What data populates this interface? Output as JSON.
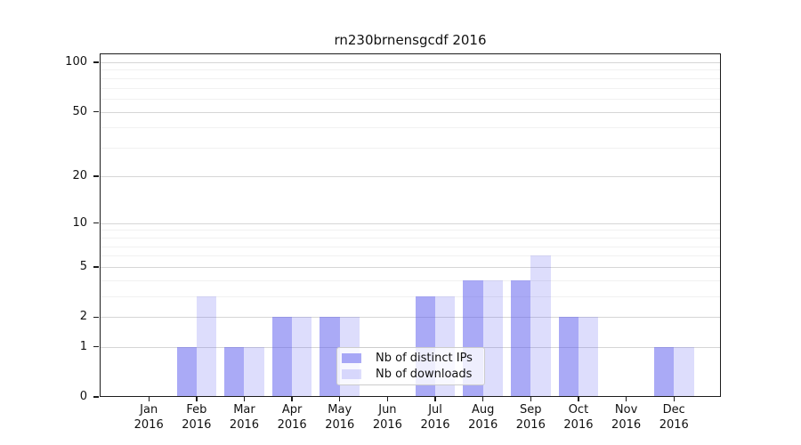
{
  "chart_data": {
    "type": "bar",
    "title": "rn230brnensgcdf 2016",
    "categories": [
      "Jan",
      "Feb",
      "Mar",
      "Apr",
      "May",
      "Jun",
      "Jul",
      "Aug",
      "Sep",
      "Oct",
      "Nov",
      "Dec"
    ],
    "category_year": "2016",
    "series": [
      {
        "name": "Nb of distinct IPs",
        "color": "rgba(85,85,238,0.5)",
        "values": [
          0,
          1,
          1,
          2,
          2,
          0,
          3,
          4,
          4,
          2,
          0,
          1
        ]
      },
      {
        "name": "Nb of downloads",
        "color": "rgba(85,85,238,0.2)",
        "values": [
          0,
          3,
          1,
          2,
          2,
          0,
          3,
          4,
          6,
          2,
          0,
          1
        ]
      }
    ],
    "yscale": "log1p",
    "ylim": [
      0,
      100
    ],
    "yticks": [
      0,
      1,
      2,
      5,
      10,
      20,
      50,
      100
    ],
    "yticks_minor": [
      3,
      4,
      6,
      7,
      8,
      9,
      30,
      40,
      60,
      70,
      80,
      90
    ],
    "grid": true,
    "legend_position": "lower center",
    "colors": {
      "spine": "#1c1c1c",
      "grid_major": "#d6d6d6",
      "grid_minor": "#f1f1f1"
    }
  }
}
